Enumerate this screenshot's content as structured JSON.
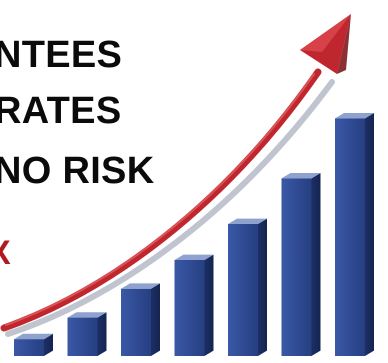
{
  "text_lines": {
    "line1": "NTEES",
    "line2": "RATES",
    "line3": "NO RISK",
    "line4": "X"
  },
  "bars": {
    "relative_heights": [
      0.07,
      0.16,
      0.28,
      0.4,
      0.55,
      0.74,
      0.99
    ],
    "colors": {
      "front": "#2f4b93",
      "side": "#1f3470",
      "top": "#8fa1cf"
    }
  },
  "arrow": {
    "color": "#c0262d",
    "highlight": "#e6666a",
    "shadow": "#7f8899"
  }
}
